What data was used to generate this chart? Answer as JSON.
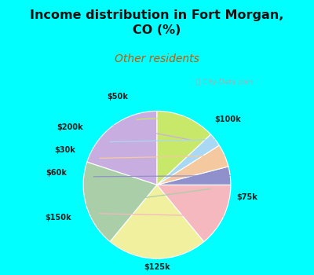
{
  "title": "Income distribution in Fort Morgan,\nCO (%)",
  "subtitle": "Other residents",
  "title_color": "#111111",
  "subtitle_color": "#cc5500",
  "bg_outer": "#00ffff",
  "bg_inner": "#e0f5e8",
  "labels": [
    "$100k",
    "$75k",
    "$125k",
    "$150k",
    "$60k",
    "$30k",
    "$200k",
    "$50k"
  ],
  "sizes": [
    20,
    19,
    22,
    14,
    4,
    5,
    3,
    13
  ],
  "colors": [
    "#c8aee0",
    "#aacfa8",
    "#f0f09e",
    "#f4b8be",
    "#9090cc",
    "#f5c9a0",
    "#a8d8f4",
    "#c8e86a"
  ],
  "startangle": 90,
  "watermark": "City-Data.com"
}
